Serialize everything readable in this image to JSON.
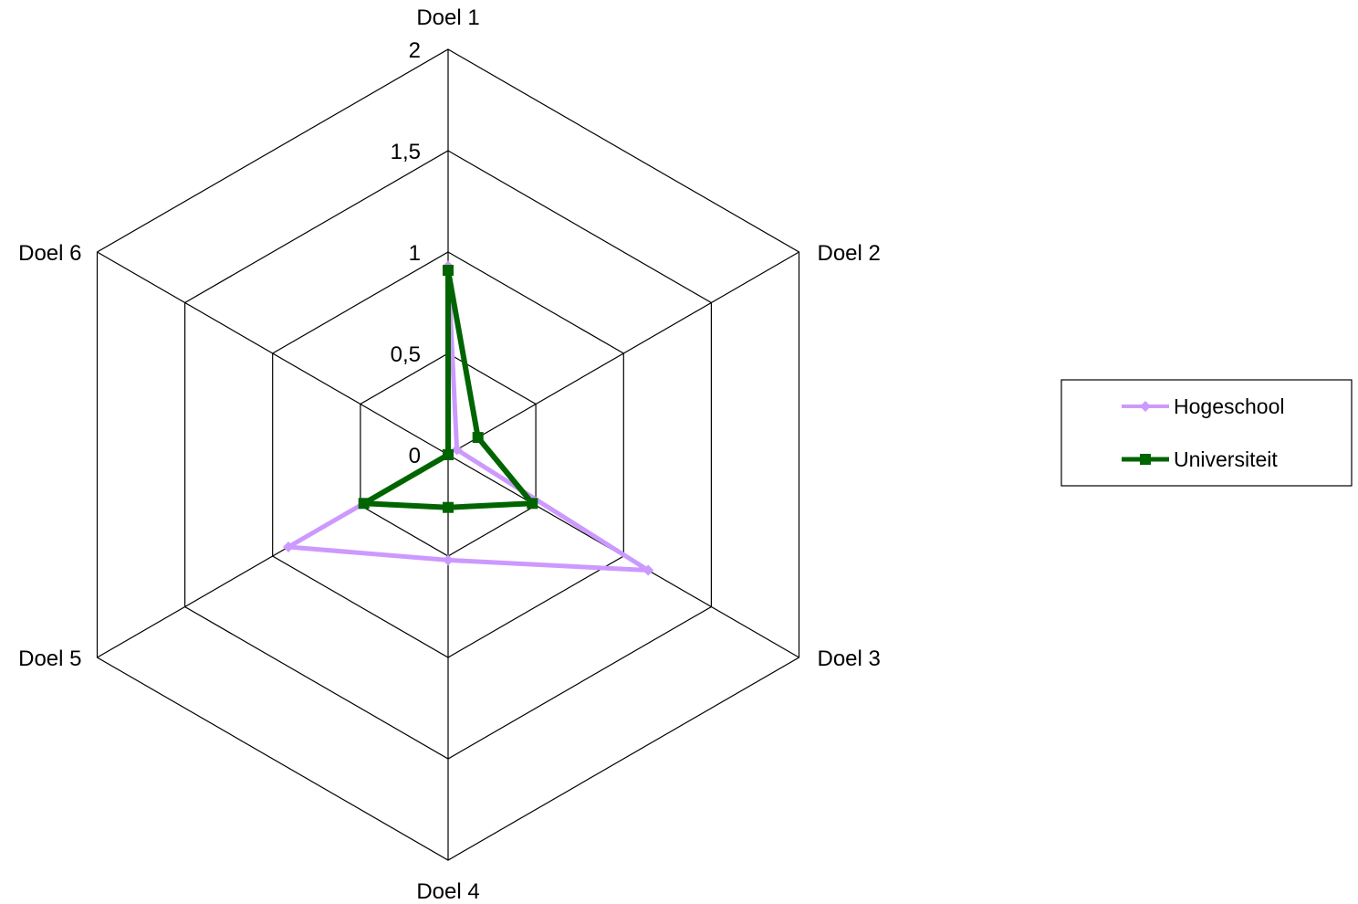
{
  "chart_data": {
    "type": "radar",
    "categories": [
      "Doel 1",
      "Doel 2",
      "Doel 3",
      "Doel 4",
      "Doel 5",
      "Doel 6"
    ],
    "ticks": [
      "0",
      "0,5",
      "1",
      "1,5",
      "2"
    ],
    "ylim": [
      0,
      2
    ],
    "grid": true,
    "legend_position": "right",
    "series": [
      {
        "name": "Hogeschool",
        "values": [
          0.93,
          0.05,
          1.14,
          0.52,
          0.91,
          0.0
        ],
        "color": "#cc99ff",
        "marker": "diamond"
      },
      {
        "name": "Universiteit",
        "values": [
          0.91,
          0.17,
          0.48,
          0.26,
          0.48,
          0.0
        ],
        "color": "#006400",
        "marker": "square"
      }
    ]
  }
}
